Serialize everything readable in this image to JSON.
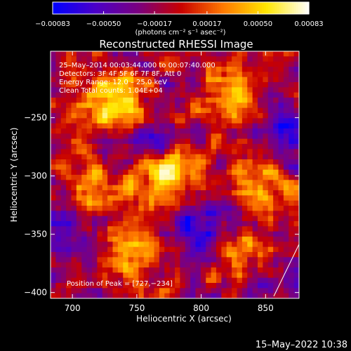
{
  "chart_data": {
    "type": "heatmap",
    "title": "Reconstructed RHESSI Image",
    "xlabel": "Heliocentric X (arcsec)",
    "ylabel": "Heliocentric Y (arcsec)",
    "xlim": [
      683,
      876
    ],
    "ylim": [
      -405,
      -193
    ],
    "x_ticks": [
      700,
      750,
      800,
      850
    ],
    "y_ticks": [
      -400,
      -350,
      -300,
      -250
    ],
    "x_tick_labels": [
      "700",
      "750",
      "800",
      "850"
    ],
    "y_tick_labels": [
      "−400",
      "−350",
      "−300",
      "−250"
    ],
    "colorbar": {
      "range": [
        -0.00083,
        0.00083
      ],
      "tick_values": [
        -0.00083,
        -0.0005,
        -0.00017,
        0.00017,
        0.0005,
        0.00083
      ],
      "tick_labels": [
        "−0.00083",
        "−0.00050",
        "−0.00017",
        "0.00017",
        "0.00050",
        "0.00083"
      ],
      "colors": [
        "#0000ff",
        "#4b00c8",
        "#7a0080",
        "#c80000",
        "#ff7a00",
        "#ffe600",
        "#ffffff"
      ],
      "unit": "(photons cm⁻² s⁻¹ asec⁻²)"
    },
    "annotations": [
      "25–May–2014 00:03:44.000 to 00:07:40.000",
      "Detectors: 3F 4F 5F 6F 7F 8F, Att 0",
      "Energy Range: 12.0 – 25.0 keV",
      "Clean    Total counts: 1.04E+04"
    ],
    "peak_label": "Position of Peak = [727,−234]",
    "peak": [
      727,
      -234
    ],
    "hot_spots": [
      {
        "x": 735,
        "y": -240,
        "intensity": 0.00083
      },
      {
        "x": 775,
        "y": -300,
        "intensity": 0.00075
      },
      {
        "x": 820,
        "y": -235,
        "intensity": 0.00045
      },
      {
        "x": 715,
        "y": -310,
        "intensity": 0.0004
      },
      {
        "x": 745,
        "y": -365,
        "intensity": 0.0005
      },
      {
        "x": 845,
        "y": -305,
        "intensity": 0.00055
      },
      {
        "x": 830,
        "y": -365,
        "intensity": 0.0004
      }
    ],
    "cold_spots": [
      {
        "x": 760,
        "y": -265,
        "intensity": -0.0005
      },
      {
        "x": 800,
        "y": -345,
        "intensity": -0.00055
      },
      {
        "x": 700,
        "y": -345,
        "intensity": -0.0004
      },
      {
        "x": 860,
        "y": -265,
        "intensity": -0.00045
      },
      {
        "x": 860,
        "y": -395,
        "intensity": -0.0004
      }
    ]
  },
  "footer_timestamp": "15–May–2022 10:38"
}
